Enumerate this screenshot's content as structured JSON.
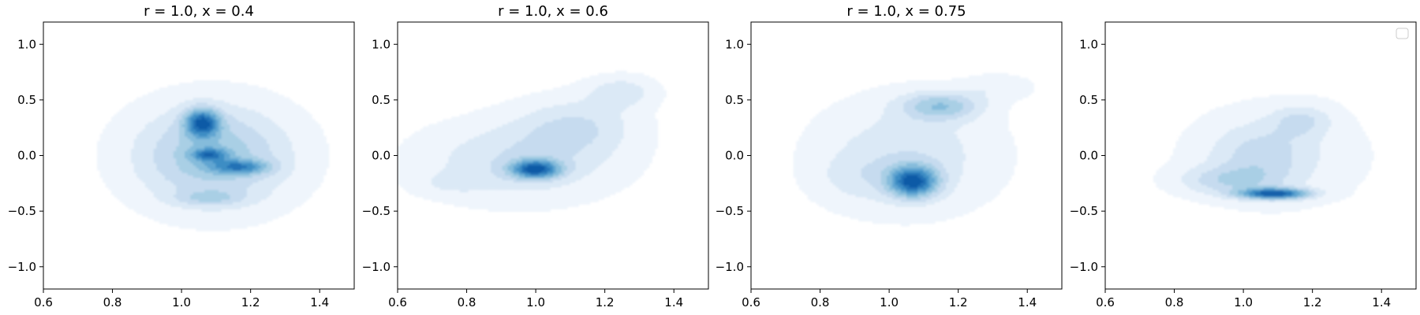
{
  "chart_data": [
    {
      "type": "kde-contour",
      "title": "r = 1.0, x = 0.4",
      "xlim": [
        0.6,
        1.5
      ],
      "ylim": [
        -1.2,
        1.2
      ],
      "xticks": [
        0.6,
        0.8,
        1.0,
        1.2,
        1.4
      ],
      "yticks": [
        -1.0,
        -0.5,
        0.0,
        0.5,
        1.0
      ],
      "xtick_labels": [
        "0.6",
        "0.8",
        "1.0",
        "1.2",
        "1.4"
      ],
      "ytick_labels": [
        "−1.0",
        "−0.5",
        "0.0",
        "0.5",
        "1.0"
      ],
      "grid": false,
      "levels": 9,
      "colormap": [
        "#eff5fc",
        "#dbe9f6",
        "#c6dbef",
        "#a9cfe5",
        "#85bcdb",
        "#60a5d1",
        "#3d8dc4",
        "#2171b5",
        "#0f5aa6"
      ],
      "density_peaks": [
        {
          "x": 1.09,
          "y": 0.0,
          "sx": 0.16,
          "sy": 0.32,
          "w": 0.55
        },
        {
          "x": 1.06,
          "y": 0.3,
          "sx": 0.035,
          "sy": 0.09,
          "w": 0.85
        },
        {
          "x": 1.08,
          "y": 0.01,
          "sx": 0.035,
          "sy": 0.04,
          "w": 0.55
        },
        {
          "x": 1.17,
          "y": -0.1,
          "sx": 0.06,
          "sy": 0.045,
          "w": 0.55
        },
        {
          "x": 1.08,
          "y": -0.38,
          "sx": 0.07,
          "sy": 0.05,
          "w": 0.25
        }
      ]
    },
    {
      "type": "kde-contour",
      "title": "r = 1.0, x = 0.6",
      "xlim": [
        0.6,
        1.5
      ],
      "ylim": [
        -1.2,
        1.2
      ],
      "xticks": [
        0.6,
        0.8,
        1.0,
        1.2,
        1.4
      ],
      "yticks": [
        -1.0,
        -0.5,
        0.0,
        0.5,
        1.0
      ],
      "xtick_labels": [
        "0.6",
        "0.8",
        "1.0",
        "1.2",
        "1.4"
      ],
      "ytick_labels": [
        "−1.0",
        "−0.5",
        "0.0",
        "0.5",
        "1.0"
      ],
      "grid": false,
      "levels": 9,
      "colormap": [
        "#eff5fc",
        "#dbe9f6",
        "#c6dbef",
        "#a9cfe5",
        "#85bcdb",
        "#60a5d1",
        "#3d8dc4",
        "#2171b5",
        "#0f5aa6"
      ],
      "density_peaks": [
        {
          "x": 1.0,
          "y": -0.12,
          "sx": 0.05,
          "sy": 0.06,
          "w": 1.0
        },
        {
          "x": 0.95,
          "y": -0.05,
          "sx": 0.2,
          "sy": 0.25,
          "w": 0.35
        },
        {
          "x": 1.12,
          "y": 0.28,
          "sx": 0.12,
          "sy": 0.18,
          "w": 0.3
        },
        {
          "x": 1.25,
          "y": 0.58,
          "sx": 0.07,
          "sy": 0.1,
          "w": 0.28
        },
        {
          "x": 0.75,
          "y": -0.25,
          "sx": 0.07,
          "sy": 0.07,
          "w": 0.12
        }
      ]
    },
    {
      "type": "kde-contour",
      "title": "r = 1.0, x = 0.75",
      "xlim": [
        0.6,
        1.5
      ],
      "ylim": [
        -1.2,
        1.2
      ],
      "xticks": [
        0.6,
        0.8,
        1.0,
        1.2,
        1.4
      ],
      "yticks": [
        -1.0,
        -0.5,
        0.0,
        0.5,
        1.0
      ],
      "xtick_labels": [
        "0.6",
        "0.8",
        "1.0",
        "1.2",
        "1.4"
      ],
      "ytick_labels": [
        "−1.0",
        "−0.5",
        "0.0",
        "0.5",
        "1.0"
      ],
      "grid": false,
      "levels": 9,
      "colormap": [
        "#eff5fc",
        "#dbe9f6",
        "#c6dbef",
        "#a9cfe5",
        "#85bcdb",
        "#60a5d1",
        "#3d8dc4",
        "#2171b5",
        "#0f5aa6"
      ],
      "density_peaks": [
        {
          "x": 1.07,
          "y": -0.23,
          "sx": 0.05,
          "sy": 0.1,
          "w": 1.0
        },
        {
          "x": 1.15,
          "y": 0.45,
          "sx": 0.08,
          "sy": 0.09,
          "w": 0.5
        },
        {
          "x": 1.05,
          "y": 0.0,
          "sx": 0.18,
          "sy": 0.35,
          "w": 0.3
        },
        {
          "x": 1.32,
          "y": 0.62,
          "sx": 0.07,
          "sy": 0.08,
          "w": 0.15
        },
        {
          "x": 0.9,
          "y": -0.2,
          "sx": 0.08,
          "sy": 0.15,
          "w": 0.12
        }
      ]
    },
    {
      "type": "kde-contour",
      "title": "",
      "xlim": [
        0.6,
        1.5
      ],
      "ylim": [
        -1.2,
        1.2
      ],
      "xticks": [
        0.6,
        0.8,
        1.0,
        1.2,
        1.4
      ],
      "yticks": [
        -1.0,
        -0.5,
        0.0,
        0.5,
        1.0
      ],
      "xtick_labels": [
        "0.6",
        "0.8",
        "1.0",
        "1.2",
        "1.4"
      ],
      "ytick_labels": [
        "−1.0",
        "−0.5",
        "0.0",
        "0.5",
        "1.0"
      ],
      "grid": false,
      "legend": "top-right (empty)",
      "levels": 9,
      "colormap": [
        "#eff5fc",
        "#dbe9f6",
        "#c6dbef",
        "#a9cfe5",
        "#85bcdb",
        "#60a5d1",
        "#3d8dc4",
        "#2171b5",
        "#0f5aa6"
      ],
      "density_peaks": [
        {
          "x": 1.09,
          "y": -0.34,
          "sx": 0.07,
          "sy": 0.035,
          "w": 1.0
        },
        {
          "x": 0.95,
          "y": -0.22,
          "sx": 0.1,
          "sy": 0.09,
          "w": 0.3
        },
        {
          "x": 1.05,
          "y": 0.0,
          "sx": 0.1,
          "sy": 0.2,
          "w": 0.25
        },
        {
          "x": 1.17,
          "y": 0.32,
          "sx": 0.06,
          "sy": 0.1,
          "w": 0.25
        },
        {
          "x": 1.1,
          "y": 0.0,
          "sx": 0.2,
          "sy": 0.35,
          "w": 0.15
        }
      ]
    }
  ]
}
